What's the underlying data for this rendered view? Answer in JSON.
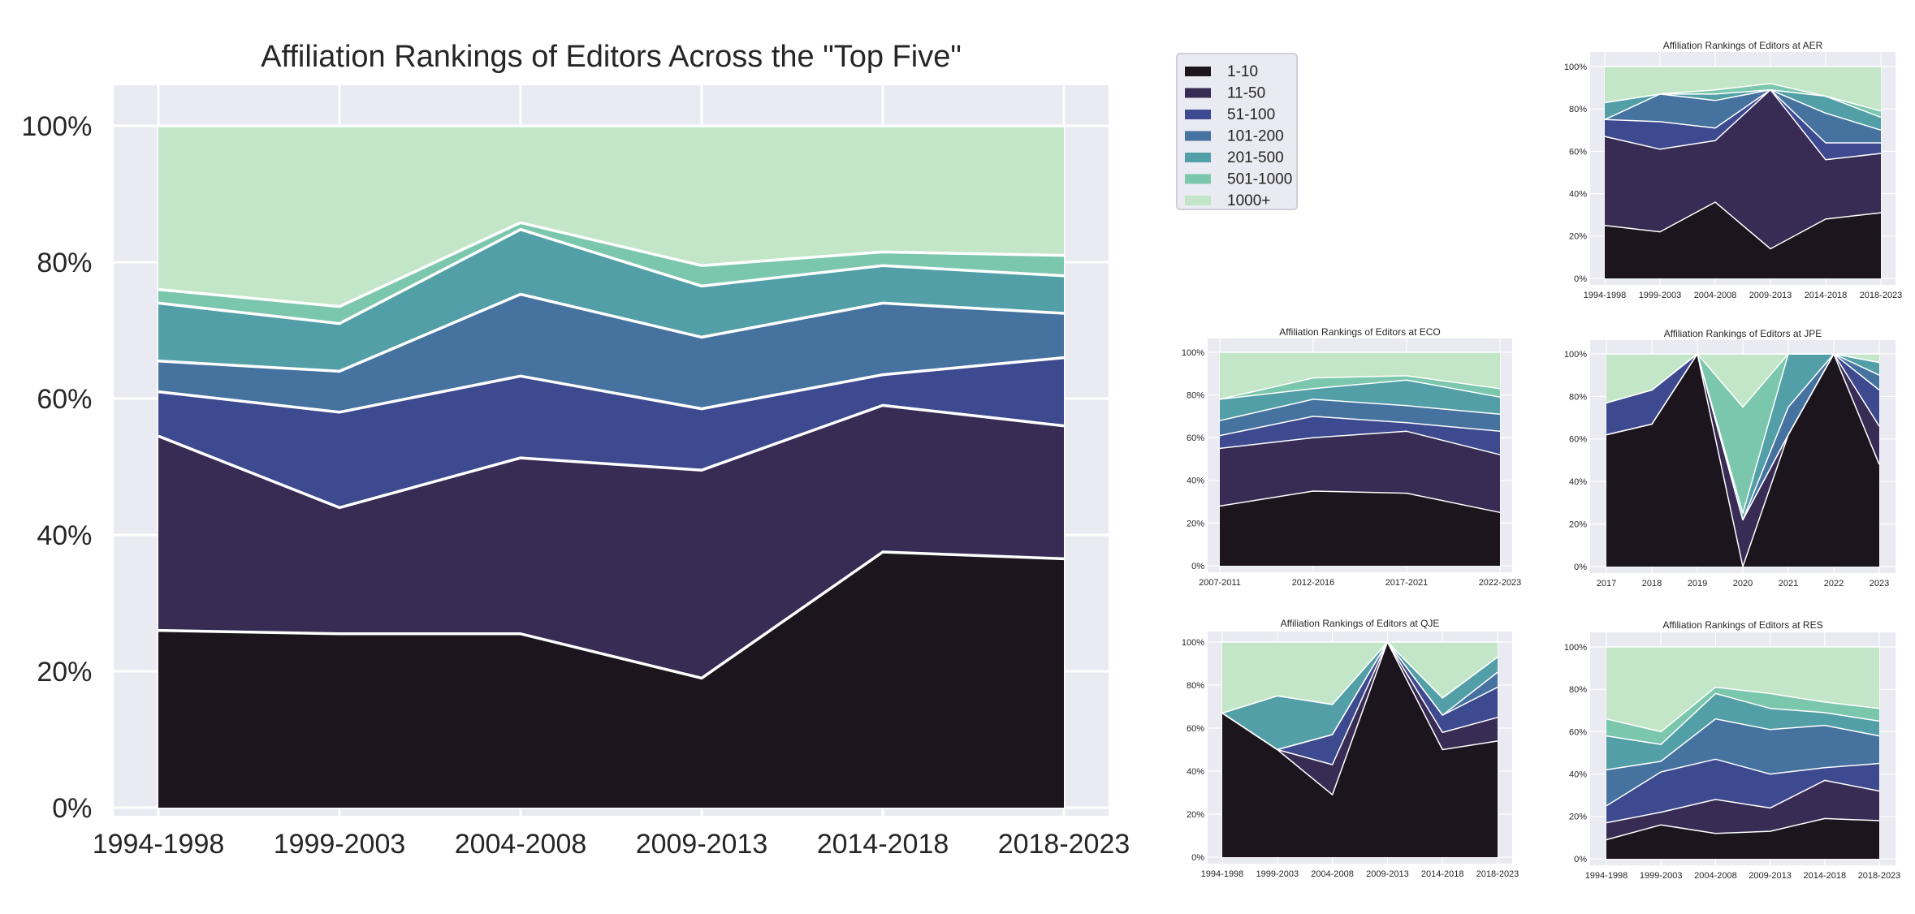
{
  "palette": {
    "1-10": "#1d151e",
    "11-50": "#382c54",
    "51-100": "#3e4a8f",
    "101-200": "#4672a0",
    "201-500": "#539fa7",
    "501-1000": "#7bc7ad",
    "1000+": "#c3e6c8",
    "background": "#eaeaf2",
    "grid": "#ffffff",
    "text": "#262626"
  },
  "legend": {
    "items": [
      "1-10",
      "11-50",
      "51-100",
      "101-200",
      "201-500",
      "501-1000",
      "1000+"
    ]
  },
  "chart_data": [
    {
      "type": "area",
      "stacked": true,
      "title": "Affiliation Rankings of Editors Across the \"Top Five\"",
      "categories": [
        "1994-1998",
        "1999-2003",
        "2004-2008",
        "2009-2013",
        "2014-2018",
        "2018-2023"
      ],
      "y_ticks": [
        "0%",
        "20%",
        "40%",
        "60%",
        "80%",
        "100%"
      ],
      "ylim": [
        0,
        100
      ],
      "grid": true,
      "series": [
        {
          "name": "1-10",
          "values": [
            26,
            25.5,
            25.5,
            19,
            37.5,
            36.5
          ]
        },
        {
          "name": "11-50",
          "values": [
            28.5,
            18.5,
            25.8,
            30.5,
            21.5,
            19.5
          ]
        },
        {
          "name": "51-100",
          "values": [
            6.5,
            14,
            12,
            9,
            4.5,
            10
          ]
        },
        {
          "name": "101-200",
          "values": [
            4.5,
            6,
            12,
            10.5,
            10.5,
            6.5
          ]
        },
        {
          "name": "201-500",
          "values": [
            8.5,
            7,
            9.5,
            7.5,
            5.5,
            5.5
          ]
        },
        {
          "name": "501-1000",
          "values": [
            2,
            2.5,
            1,
            3,
            2,
            3
          ]
        },
        {
          "name": "1000+",
          "values": [
            24,
            26.5,
            14.2,
            20.5,
            18.5,
            19
          ]
        }
      ]
    },
    {
      "type": "area",
      "stacked": true,
      "title": "Affiliation Rankings of Editors at AER",
      "categories": [
        "1994-1998",
        "1999-2003",
        "2004-2008",
        "2009-2013",
        "2014-2018",
        "2018-2023"
      ],
      "y_ticks": [
        "0%",
        "20%",
        "40%",
        "60%",
        "80%",
        "100%"
      ],
      "ylim": [
        0,
        100
      ],
      "series": [
        {
          "name": "1-10",
          "values": [
            25,
            22,
            36,
            14,
            28,
            31
          ]
        },
        {
          "name": "11-50",
          "values": [
            42,
            39,
            29,
            75,
            28,
            28
          ]
        },
        {
          "name": "51-100",
          "values": [
            8,
            13,
            6,
            0,
            8,
            5
          ]
        },
        {
          "name": "101-200",
          "values": [
            0,
            13,
            13,
            0,
            14,
            6
          ]
        },
        {
          "name": "201-500",
          "values": [
            8,
            0,
            3,
            0,
            8,
            6
          ]
        },
        {
          "name": "501-1000",
          "values": [
            0,
            0,
            2,
            3,
            0,
            3
          ]
        },
        {
          "name": "1000+",
          "values": [
            17,
            13,
            11,
            8,
            14,
            21
          ]
        }
      ]
    },
    {
      "type": "area",
      "stacked": true,
      "title": "Affiliation Rankings of Editors at ECO",
      "categories": [
        "2007-2011",
        "2012-2016",
        "2017-2021",
        "2022-2023"
      ],
      "y_ticks": [
        "0%",
        "20%",
        "40%",
        "60%",
        "80%",
        "100%"
      ],
      "ylim": [
        0,
        100
      ],
      "series": [
        {
          "name": "1-10",
          "values": [
            28,
            35,
            34,
            25
          ]
        },
        {
          "name": "11-50",
          "values": [
            27,
            25,
            29,
            27
          ]
        },
        {
          "name": "51-100",
          "values": [
            6,
            10,
            4,
            11
          ]
        },
        {
          "name": "101-200",
          "values": [
            7,
            8,
            8,
            8
          ]
        },
        {
          "name": "201-500",
          "values": [
            10,
            5,
            12,
            8
          ]
        },
        {
          "name": "501-1000",
          "values": [
            0,
            5,
            2,
            4
          ]
        },
        {
          "name": "1000+",
          "values": [
            22,
            12,
            11,
            17
          ]
        }
      ]
    },
    {
      "type": "area",
      "stacked": true,
      "title": "Affiliation Rankings of Editors at JPE",
      "categories": [
        "2017",
        "2018",
        "2019",
        "2020",
        "2021",
        "2022",
        "2023"
      ],
      "y_ticks": [
        "0%",
        "20%",
        "40%",
        "60%",
        "80%",
        "100%"
      ],
      "ylim": [
        0,
        100
      ],
      "series": [
        {
          "name": "1-10",
          "values": [
            62,
            67,
            100,
            0,
            62,
            100,
            48
          ]
        },
        {
          "name": "11-50",
          "values": [
            0,
            0,
            0,
            22,
            0,
            0,
            18
          ]
        },
        {
          "name": "51-100",
          "values": [
            15,
            16,
            0,
            0,
            0,
            0,
            17
          ]
        },
        {
          "name": "101-200",
          "values": [
            0,
            0,
            0,
            0,
            13,
            0,
            7
          ]
        },
        {
          "name": "201-500",
          "values": [
            0,
            0,
            0,
            3,
            25,
            0,
            6
          ]
        },
        {
          "name": "501-1000",
          "values": [
            0,
            0,
            0,
            50,
            0,
            0,
            0
          ]
        },
        {
          "name": "1000+",
          "values": [
            23,
            17,
            0,
            25,
            0,
            0,
            4
          ]
        }
      ]
    },
    {
      "type": "area",
      "stacked": true,
      "title": "Affiliation Rankings of Editors at QJE",
      "categories": [
        "1994-1998",
        "1999-2003",
        "2004-2008",
        "2009-2013",
        "2014-2018",
        "2018-2023"
      ],
      "y_ticks": [
        "0%",
        "20%",
        "40%",
        "60%",
        "80%",
        "100%"
      ],
      "ylim": [
        0,
        100
      ],
      "series": [
        {
          "name": "1-10",
          "values": [
            67,
            50,
            29,
            100,
            50,
            54
          ]
        },
        {
          "name": "11-50",
          "values": [
            0,
            0,
            14,
            0,
            8,
            11
          ]
        },
        {
          "name": "51-100",
          "values": [
            0,
            0,
            14,
            0,
            8,
            14
          ]
        },
        {
          "name": "101-200",
          "values": [
            0,
            0,
            0,
            0,
            0,
            7
          ]
        },
        {
          "name": "201-500",
          "values": [
            0,
            25,
            14,
            0,
            8,
            7
          ]
        },
        {
          "name": "501-1000",
          "values": [
            0,
            0,
            0,
            0,
            0,
            0
          ]
        },
        {
          "name": "1000+",
          "values": [
            33,
            25,
            29,
            0,
            26,
            7
          ]
        }
      ]
    },
    {
      "type": "area",
      "stacked": true,
      "title": "Affiliation Rankings of Editors at RES",
      "categories": [
        "1994-1998",
        "1999-2003",
        "2004-2008",
        "2009-2013",
        "2014-2018",
        "2018-2023"
      ],
      "y_ticks": [
        "0%",
        "20%",
        "40%",
        "60%",
        "80%",
        "100%"
      ],
      "ylim": [
        0,
        100
      ],
      "series": [
        {
          "name": "1-10",
          "values": [
            9,
            16,
            12,
            13,
            19,
            18
          ]
        },
        {
          "name": "11-50",
          "values": [
            8,
            6,
            16,
            11,
            18,
            14
          ]
        },
        {
          "name": "51-100",
          "values": [
            8,
            19,
            19,
            16,
            6,
            13
          ]
        },
        {
          "name": "101-200",
          "values": [
            17,
            5,
            19,
            21,
            20,
            13
          ]
        },
        {
          "name": "201-500",
          "values": [
            16,
            8,
            12,
            10,
            6,
            7
          ]
        },
        {
          "name": "501-1000",
          "values": [
            8,
            6,
            3,
            7,
            5,
            6
          ]
        },
        {
          "name": "1000+",
          "values": [
            34,
            40,
            19,
            22,
            26,
            29
          ]
        }
      ]
    }
  ]
}
